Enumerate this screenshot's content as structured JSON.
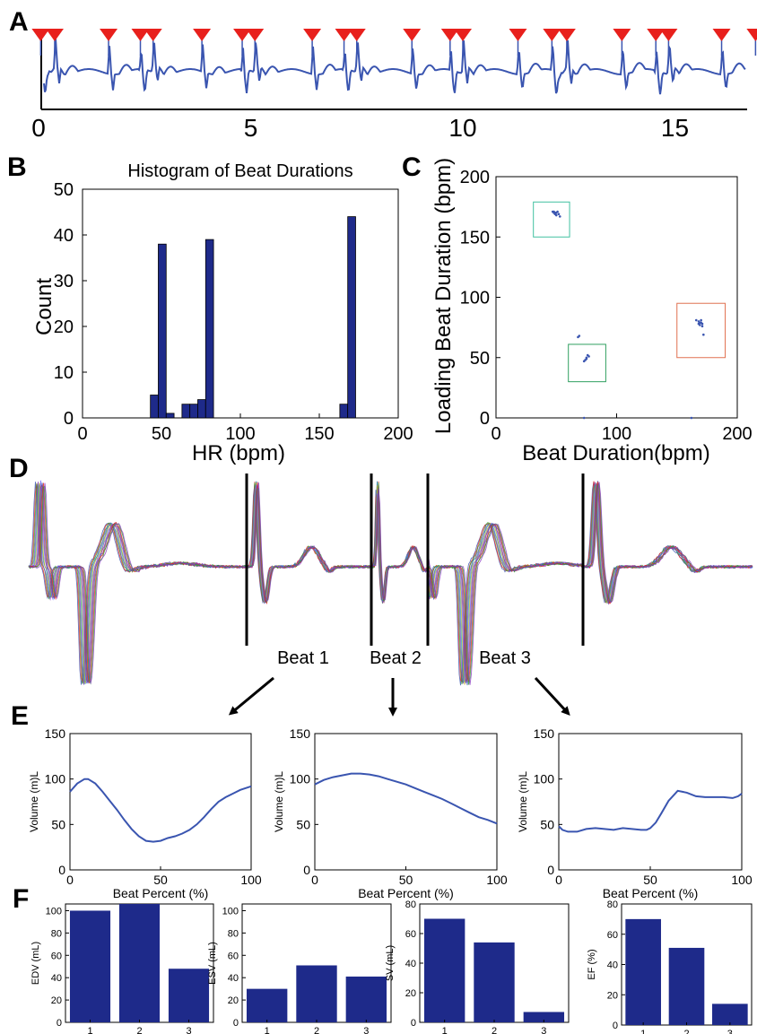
{
  "panels": {
    "A": {
      "label": "A",
      "chart_data": {
        "type": "line",
        "xlim": [
          0,
          17
        ],
        "x_ticks": [
          "0",
          "5",
          "10",
          "15"
        ],
        "beat_markers_x": [
          0.05,
          0.38,
          1.65,
          2.4,
          2.7,
          3.85,
          4.8,
          5.1,
          6.45,
          7.2,
          7.5,
          8.8,
          9.7,
          10.0,
          11.3,
          12.1,
          12.45,
          13.75,
          14.55,
          14.85,
          16.1,
          16.9,
          17.2
        ]
      }
    },
    "B": {
      "label": "B",
      "chart_data": {
        "type": "bar",
        "title": "Histogram of Beat Durations",
        "xlabel": "HR (bpm)",
        "ylabel": "Count",
        "xlim": [
          0,
          200
        ],
        "ylim": [
          0,
          50
        ],
        "x_ticks": [
          "0",
          "50",
          "100",
          "150",
          "200"
        ],
        "y_ticks": [
          "0",
          "10",
          "20",
          "30",
          "40",
          "50"
        ],
        "bins": [
          {
            "x": 45.5,
            "value": 5
          },
          {
            "x": 50.5,
            "value": 38
          },
          {
            "x": 55.5,
            "value": 1
          },
          {
            "x": 65.5,
            "value": 3
          },
          {
            "x": 70.5,
            "value": 3
          },
          {
            "x": 75.5,
            "value": 4
          },
          {
            "x": 80.5,
            "value": 39
          },
          {
            "x": 165.5,
            "value": 3
          },
          {
            "x": 170.5,
            "value": 44
          }
        ],
        "bin_width": 5
      }
    },
    "C": {
      "label": "C",
      "chart_data": {
        "type": "scatter",
        "xlabel": "Beat Duration(bpm)",
        "ylabel": "Loading Beat Duration (bpm)",
        "xlim": [
          0,
          200
        ],
        "ylim": [
          0,
          200
        ],
        "x_ticks": [
          "0",
          "100",
          "200"
        ],
        "y_ticks": [
          "0",
          "50",
          "100",
          "150",
          "200"
        ],
        "points": [
          [
            47,
            171
          ],
          [
            48,
            171
          ],
          [
            49,
            170
          ],
          [
            50,
            170
          ],
          [
            51,
            171
          ],
          [
            52,
            169
          ],
          [
            49,
            169
          ],
          [
            53,
            167
          ],
          [
            50,
            168
          ],
          [
            48,
            170
          ],
          [
            68,
            67
          ],
          [
            69,
            68
          ],
          [
            74,
            48
          ],
          [
            75,
            50
          ],
          [
            76,
            52
          ],
          [
            73,
            47
          ],
          [
            77,
            51
          ],
          [
            75,
            49
          ],
          [
            166,
            81
          ],
          [
            168,
            80
          ],
          [
            169,
            79
          ],
          [
            170,
            79
          ],
          [
            171,
            78
          ],
          [
            171,
            76
          ],
          [
            169,
            77
          ],
          [
            170,
            81
          ],
          [
            172,
            69
          ],
          [
            168,
            78
          ],
          [
            73,
            0
          ],
          [
            162,
            0
          ]
        ],
        "boxes": [
          {
            "x": [
              31,
              61
            ],
            "y": [
              150,
              179
            ],
            "color": "#40c0a0"
          },
          {
            "x": [
              60,
              91
            ],
            "y": [
              30,
              61
            ],
            "color": "#30a060"
          },
          {
            "x": [
              150,
              190
            ],
            "y": [
              50,
              95
            ],
            "color": "#e07050"
          }
        ]
      }
    },
    "D": {
      "label": "D",
      "beat_labels": [
        "Beat 1",
        "Beat 2",
        "Beat 3"
      ]
    },
    "E": {
      "label": "E",
      "chart_data": [
        {
          "type": "line",
          "xlabel": "Beat Percent (%)",
          "ylabel": "Volume (m)L",
          "xlim": [
            0,
            100
          ],
          "ylim": [
            0,
            150
          ],
          "x_ticks": [
            "0",
            "50",
            "100"
          ],
          "y_ticks": [
            "0",
            "50",
            "100",
            "150"
          ],
          "x": [
            0,
            4,
            8,
            10,
            14,
            18,
            22,
            26,
            30,
            34,
            38,
            42,
            46,
            50,
            54,
            58,
            62,
            66,
            70,
            74,
            78,
            82,
            86,
            90,
            94,
            100
          ],
          "y": [
            86,
            95,
            100,
            100,
            95,
            86,
            76,
            66,
            55,
            45,
            37,
            32,
            31,
            32,
            35,
            37,
            40,
            44,
            50,
            58,
            67,
            75,
            80,
            84,
            88,
            92
          ]
        },
        {
          "type": "line",
          "xlabel": "Beat Percent (%)",
          "ylabel": "Volume (m)L",
          "xlim": [
            0,
            100
          ],
          "ylim": [
            0,
            150
          ],
          "x_ticks": [
            "0",
            "50",
            "100"
          ],
          "y_ticks": [
            "0",
            "50",
            "100",
            "150"
          ],
          "x": [
            0,
            5,
            10,
            15,
            20,
            25,
            30,
            35,
            40,
            45,
            50,
            55,
            60,
            65,
            70,
            75,
            80,
            85,
            90,
            95,
            100
          ],
          "y": [
            94,
            99,
            102,
            104,
            106,
            106,
            105,
            103,
            100,
            97,
            94,
            90,
            86,
            82,
            78,
            73,
            68,
            63,
            58,
            55,
            51
          ]
        },
        {
          "type": "line",
          "xlabel": "Beat Percent (%)",
          "ylabel": "Volume (m)L",
          "xlim": [
            0,
            100
          ],
          "ylim": [
            0,
            150
          ],
          "x_ticks": [
            "0",
            "50",
            "100"
          ],
          "y_ticks": [
            "0",
            "50",
            "100",
            "150"
          ],
          "x": [
            0,
            2,
            5,
            10,
            15,
            20,
            25,
            30,
            35,
            40,
            45,
            48,
            50,
            53,
            56,
            60,
            65,
            70,
            75,
            80,
            85,
            90,
            95,
            98,
            100
          ],
          "y": [
            48,
            44,
            42,
            42,
            45,
            46,
            45,
            44,
            46,
            45,
            44,
            44,
            46,
            52,
            62,
            76,
            87,
            85,
            81,
            80,
            80,
            80,
            79,
            81,
            84
          ]
        }
      ]
    },
    "F": {
      "label": "F",
      "chart_data": [
        {
          "type": "bar",
          "ylabel": "EDV (mL)",
          "categories": [
            "1",
            "2",
            "3"
          ],
          "values": [
            100,
            106,
            48
          ],
          "ylim": [
            0,
            106
          ],
          "y_ticks": [
            0,
            20,
            40,
            60,
            80,
            100
          ]
        },
        {
          "type": "bar",
          "ylabel": "ESV (mL)",
          "categories": [
            "1",
            "2",
            "3"
          ],
          "values": [
            30,
            51,
            41
          ],
          "ylim": [
            0,
            106
          ],
          "y_ticks": [
            0,
            20,
            40,
            60,
            80,
            100
          ]
        },
        {
          "type": "bar",
          "ylabel": "SV (mL)",
          "categories": [
            "1",
            "2",
            "3"
          ],
          "values": [
            70,
            54,
            7
          ],
          "ylim": [
            0,
            80
          ],
          "y_ticks": [
            0,
            20,
            40,
            60,
            80
          ]
        },
        {
          "type": "bar",
          "ylabel": "EF (%)",
          "categories": [
            "1",
            "2",
            "3"
          ],
          "values": [
            70,
            51,
            14
          ],
          "ylim": [
            0,
            80
          ],
          "y_ticks": [
            0,
            20,
            40,
            60,
            80
          ]
        }
      ]
    }
  },
  "colors": {
    "trace": "#3a55b0",
    "marker": "#e8201c",
    "bar": "#1e2a8a",
    "axis": "#000000"
  }
}
